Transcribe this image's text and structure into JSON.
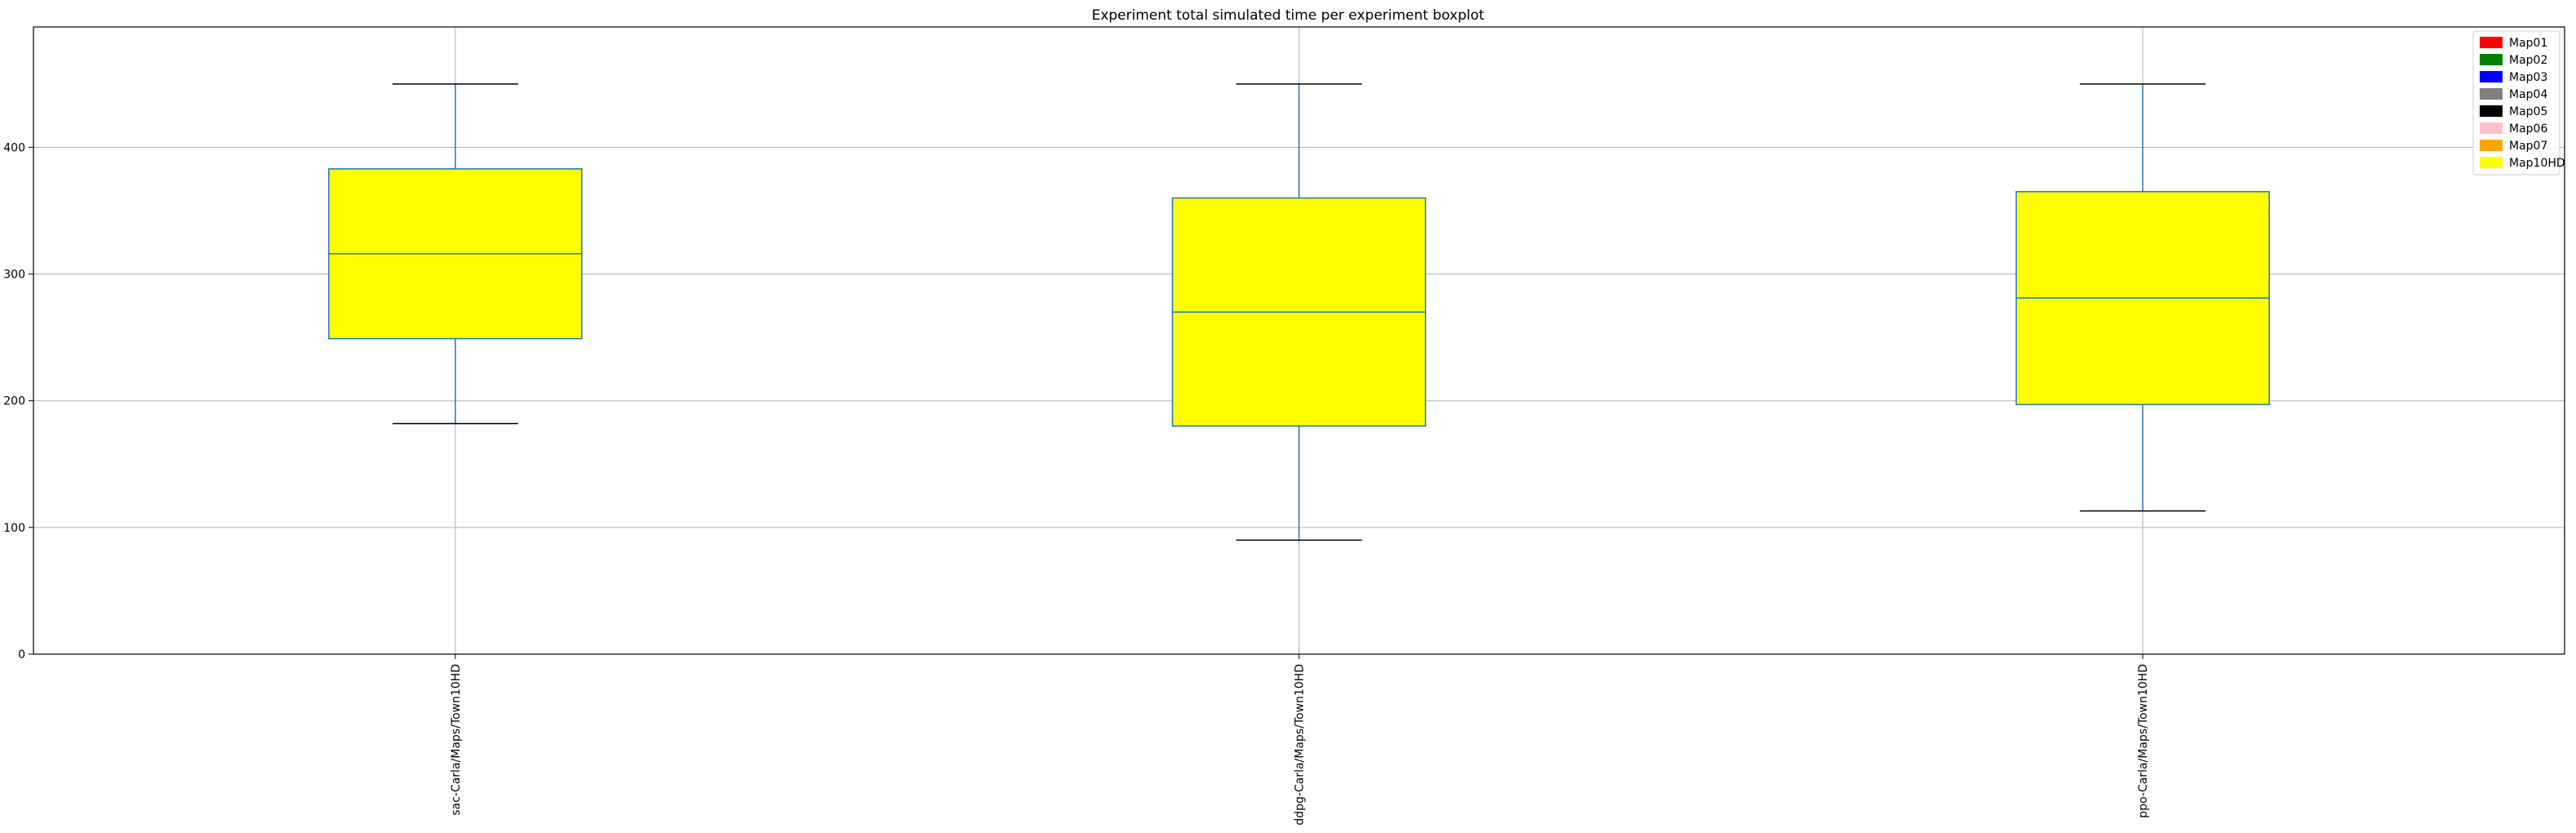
{
  "chart_data": {
    "type": "boxplot",
    "title": "Experiment total simulated time per experiment boxplot",
    "xlabel": "",
    "ylabel": "",
    "ylim": [
      0,
      495
    ],
    "yticks": [
      0,
      100,
      200,
      300,
      400
    ],
    "grid": true,
    "legend_position": "top-right",
    "legend": [
      {
        "label": "Map01",
        "color": "#ff0000"
      },
      {
        "label": "Map02",
        "color": "#008000"
      },
      {
        "label": "Map03",
        "color": "#0000ff"
      },
      {
        "label": "Map04",
        "color": "#808080"
      },
      {
        "label": "Map05",
        "color": "#000000"
      },
      {
        "label": "Map06",
        "color": "#ffc0cb"
      },
      {
        "label": "Map07",
        "color": "#ffa500"
      },
      {
        "label": "Map10HD",
        "color": "#ffff00"
      }
    ],
    "categories": [
      "sac-Carla/Maps/Town10HD",
      "ddpg-Carla/Maps/Town10HD",
      "ppo-Carla/Maps/Town10HD"
    ],
    "boxes": [
      {
        "whisker_low": 182,
        "q1": 249,
        "median": 316,
        "q3": 383,
        "whisker_high": 450,
        "color": "#ffff00"
      },
      {
        "whisker_low": 90,
        "q1": 180,
        "median": 270,
        "q3": 360,
        "whisker_high": 450,
        "color": "#ffff00"
      },
      {
        "whisker_low": 113,
        "q1": 197,
        "median": 281,
        "q3": 365,
        "whisker_high": 450,
        "color": "#ffff00"
      }
    ],
    "colors": {
      "box_edge": "#1f77b4",
      "whisker_cap": "#000000",
      "grid": "#b0b0b0"
    }
  }
}
